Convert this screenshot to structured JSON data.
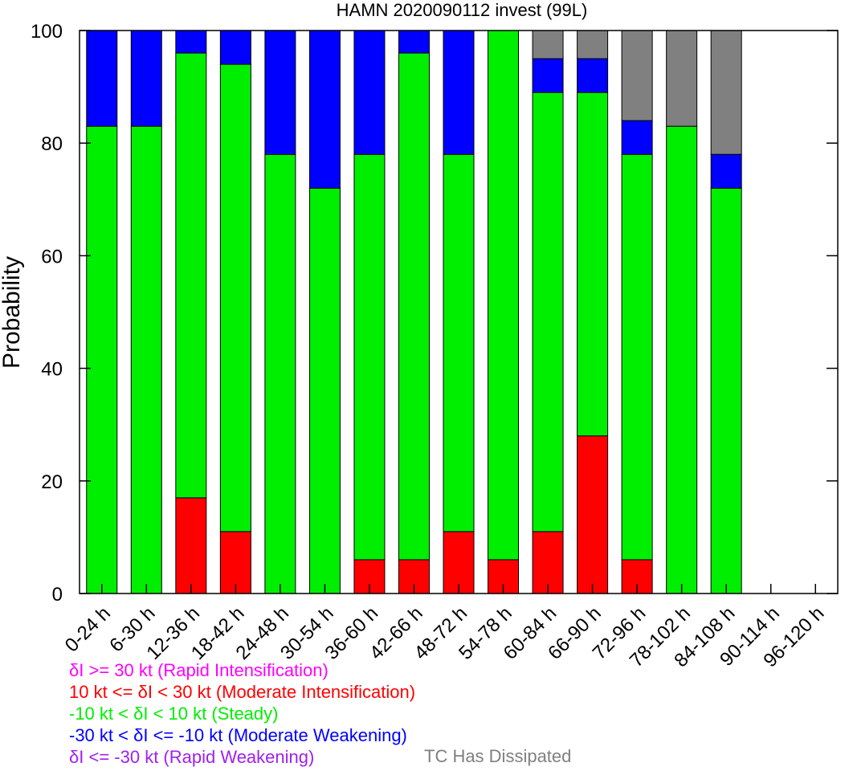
{
  "chart_data": {
    "type": "bar",
    "stacked": true,
    "title": "HAMN 2020090112 invest (99L)",
    "xlabel": "",
    "ylabel": "Probability",
    "ylim": [
      0,
      100
    ],
    "yticks": [
      "0",
      "20",
      "40",
      "60",
      "80",
      "100"
    ],
    "grid": false,
    "categories": [
      "0-24 h",
      "6-30 h",
      "12-36 h",
      "18-42 h",
      "24-48 h",
      "30-54 h",
      "36-60 h",
      "42-66 h",
      "48-72 h",
      "54-78 h",
      "60-84 h",
      "66-90 h",
      "72-96 h",
      "78-102 h",
      "84-108 h",
      "90-114 h",
      "96-120 h"
    ],
    "series": [
      {
        "name": "δI >= 30 kt (Rapid Intensification)",
        "color": "#ff00ff",
        "values": [
          0,
          0,
          0,
          0,
          0,
          0,
          0,
          0,
          0,
          0,
          0,
          0,
          0,
          0,
          0,
          0,
          0
        ]
      },
      {
        "name": "10 kt <= δI < 30 kt (Moderate Intensification)",
        "color": "#ff0000",
        "values": [
          0,
          0,
          17,
          11,
          0,
          0,
          6,
          6,
          11,
          6,
          11,
          28,
          6,
          0,
          0,
          0,
          0
        ]
      },
      {
        "name": "-10 kt < δI < 10 kt (Steady)",
        "color": "#00ee00",
        "values": [
          83,
          83,
          79,
          83,
          78,
          72,
          72,
          90,
          67,
          94,
          78,
          61,
          72,
          83,
          72,
          0,
          0
        ]
      },
      {
        "name": "-30 kt < δI <= -10 kt (Moderate Weakening)",
        "color": "#0000ff",
        "values": [
          17,
          17,
          4,
          6,
          22,
          28,
          22,
          4,
          22,
          0,
          6,
          6,
          6,
          0,
          6,
          0,
          0
        ]
      },
      {
        "name": "δI <= -30 kt (Rapid Weakening)",
        "color": "#a020f0",
        "values": [
          0,
          0,
          0,
          0,
          0,
          0,
          0,
          0,
          0,
          0,
          0,
          0,
          0,
          0,
          0,
          0,
          0
        ]
      },
      {
        "name": "TC Has Dissipated",
        "color": "#808080",
        "values": [
          0,
          0,
          0,
          0,
          0,
          0,
          0,
          0,
          0,
          0,
          5,
          5,
          16,
          17,
          22,
          0,
          0
        ]
      }
    ],
    "legend": {
      "position": "bottom-left",
      "entries": [
        {
          "text": "δI >= 30 kt (Rapid Intensification)",
          "color": "#ff00ff"
        },
        {
          "text": "10 kt <= δI < 30 kt (Moderate Intensification)",
          "color": "#ff0000"
        },
        {
          "text": "-10 kt < δI < 10 kt (Steady)",
          "color": "#00ee00"
        },
        {
          "text": "-30 kt < δI <= -10 kt (Moderate Weakening)",
          "color": "#0000ff"
        },
        {
          "text": "δI <= -30 kt (Rapid Weakening)",
          "color": "#a020f0"
        }
      ],
      "dissipated": {
        "text": "TC Has Dissipated",
        "color": "#808080"
      }
    }
  }
}
